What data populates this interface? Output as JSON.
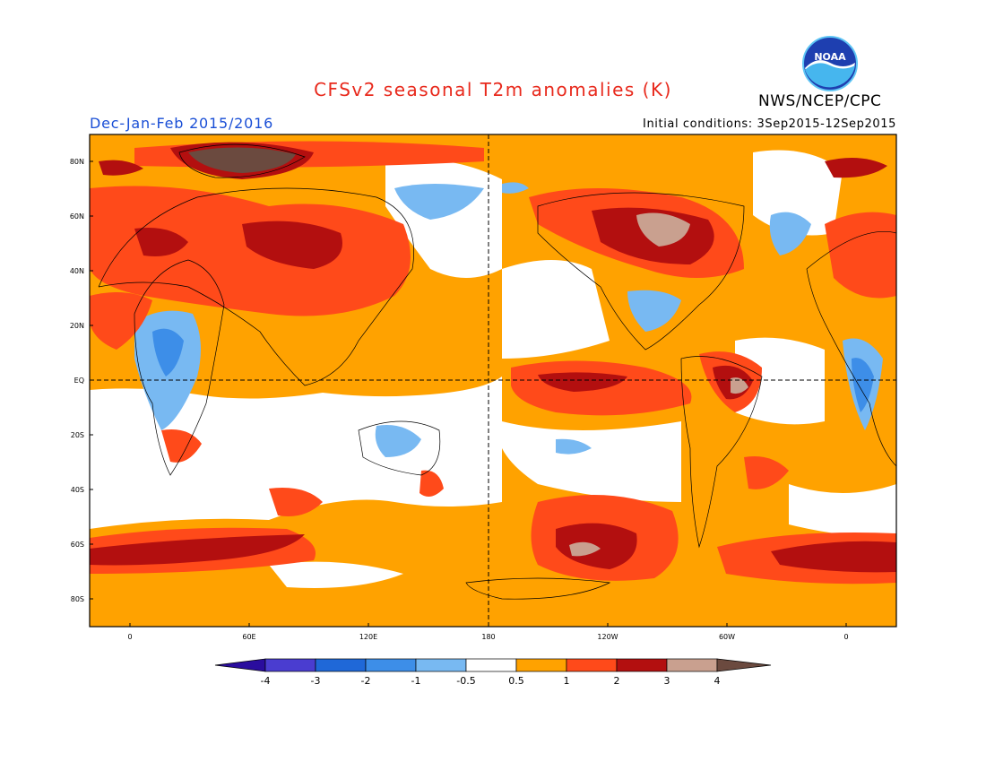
{
  "title": "CFSv2 seasonal T2m anomalies (K)",
  "agency": "NWS/NCEP/CPC",
  "period": "Dec-Jan-Feb 2015/2016",
  "initial_conditions": "Initial conditions: 3Sep2015-12Sep2015",
  "logo": {
    "text": "NOAA",
    "icon": "noaa-logo-icon"
  },
  "lat_ticks": [
    "80N",
    "60N",
    "40N",
    "20N",
    "EQ",
    "20S",
    "40S",
    "60S",
    "80S"
  ],
  "lon_ticks": [
    "0",
    "60E",
    "120E",
    "180",
    "120W",
    "60W",
    "0"
  ],
  "colorbar": {
    "labels": [
      "-4",
      "-3",
      "-2",
      "-1",
      "-0.5",
      "0.5",
      "1",
      "2",
      "3",
      "4"
    ],
    "colors": [
      "#2a0d9e",
      "#4a3dd0",
      "#1f68d8",
      "#3d8ee8",
      "#78b9f2",
      "#ffffff",
      "#ffa200",
      "#ff4a1a",
      "#b30f0f",
      "#c9a08f",
      "#6b4a3f"
    ]
  }
}
